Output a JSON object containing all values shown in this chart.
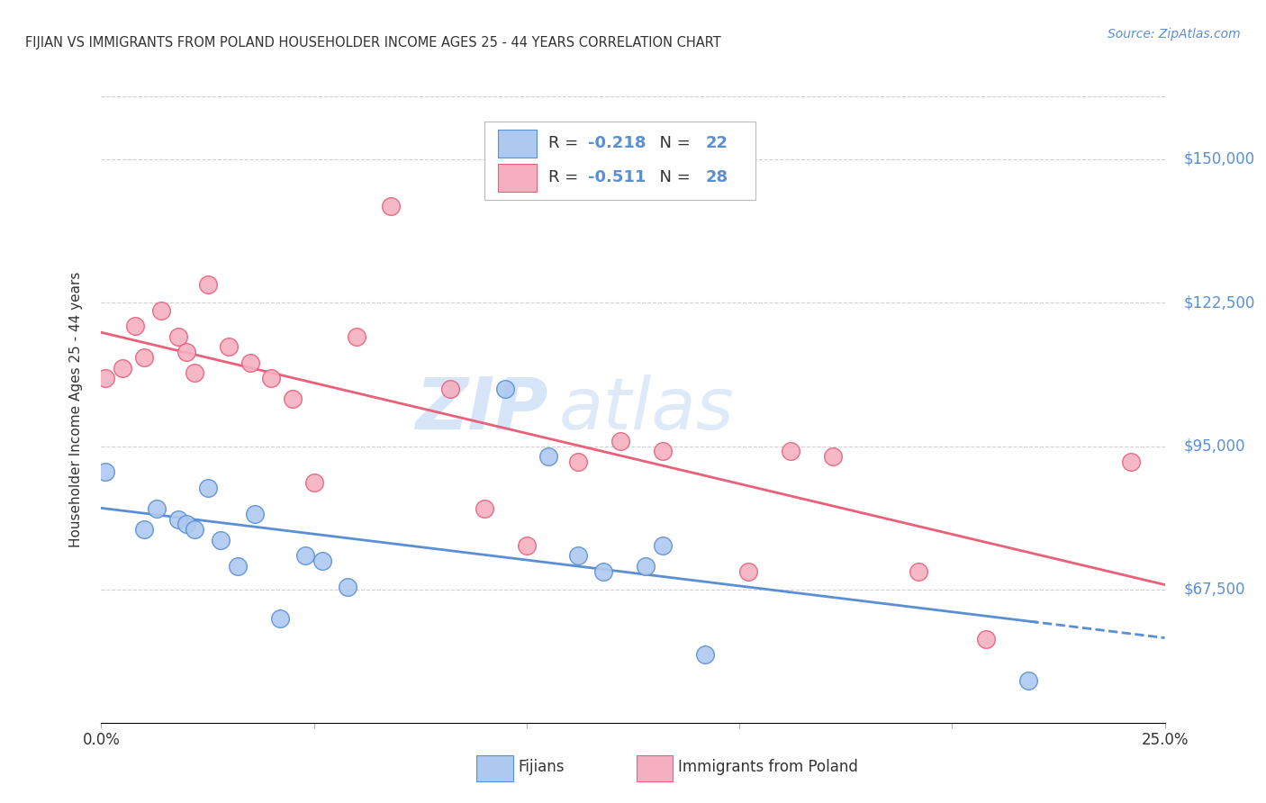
{
  "title": "FIJIAN VS IMMIGRANTS FROM POLAND HOUSEHOLDER INCOME AGES 25 - 44 YEARS CORRELATION CHART",
  "source": "Source: ZipAtlas.com",
  "ylabel": "Householder Income Ages 25 - 44 years",
  "ytick_values": [
    67500,
    95000,
    122500,
    150000
  ],
  "ylim": [
    42000,
    162000
  ],
  "xlim": [
    0.0,
    0.25
  ],
  "legend_r_fijian": "-0.218",
  "legend_n_fijian": "22",
  "legend_r_poland": "-0.511",
  "legend_n_poland": "28",
  "fijian_color": "#adc9f0",
  "poland_color": "#f5afc0",
  "fijian_line_color": "#5b8fd4",
  "poland_line_color": "#e8607a",
  "watermark_zip": "ZIP",
  "watermark_atlas": "atlas",
  "background_color": "#ffffff",
  "grid_color": "#d0d0d0",
  "fijian_x": [
    0.001,
    0.01,
    0.013,
    0.018,
    0.02,
    0.022,
    0.025,
    0.028,
    0.032,
    0.036,
    0.042,
    0.048,
    0.052,
    0.058,
    0.095,
    0.105,
    0.112,
    0.118,
    0.128,
    0.132,
    0.142,
    0.218
  ],
  "fijian_y": [
    90000,
    79000,
    83000,
    81000,
    80000,
    79000,
    87000,
    77000,
    72000,
    82000,
    62000,
    74000,
    73000,
    68000,
    106000,
    93000,
    74000,
    71000,
    72000,
    76000,
    55000,
    50000
  ],
  "poland_x": [
    0.001,
    0.005,
    0.008,
    0.01,
    0.014,
    0.018,
    0.02,
    0.022,
    0.025,
    0.03,
    0.035,
    0.04,
    0.045,
    0.05,
    0.06,
    0.068,
    0.082,
    0.09,
    0.1,
    0.112,
    0.122,
    0.132,
    0.152,
    0.162,
    0.172,
    0.192,
    0.208,
    0.242
  ],
  "poland_y": [
    108000,
    110000,
    118000,
    112000,
    121000,
    116000,
    113000,
    109000,
    126000,
    114000,
    111000,
    108000,
    104000,
    88000,
    116000,
    141000,
    106000,
    83000,
    76000,
    92000,
    96000,
    94000,
    71000,
    94000,
    93000,
    71000,
    58000,
    92000
  ]
}
